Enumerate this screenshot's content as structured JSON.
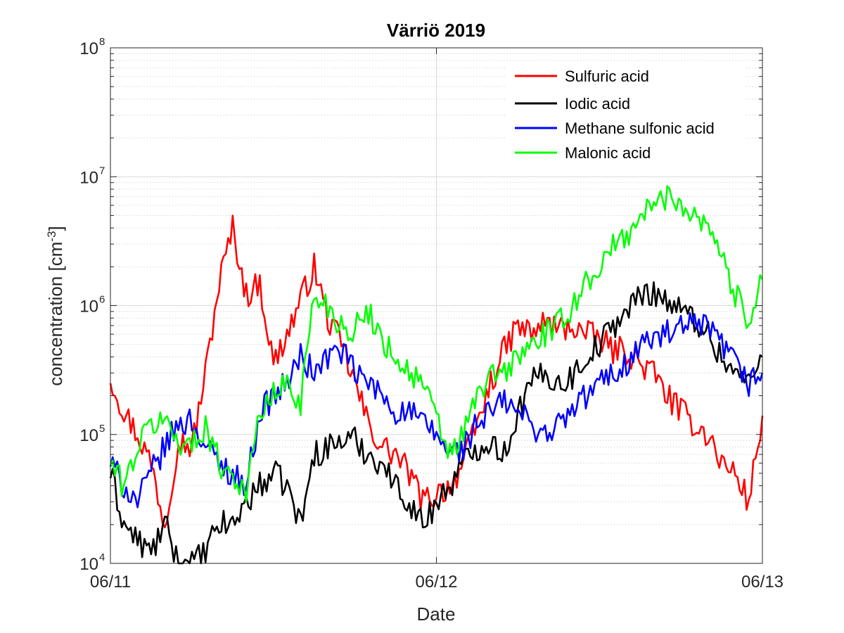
{
  "chart_data": {
    "type": "line",
    "title": "Värriö 2019",
    "xlabel": "Date",
    "ylabel": "concentration [cm",
    "ylabel_exponent": "-3",
    "ylabel_suffix": "]",
    "yscale": "log",
    "ylim": [
      10000,
      100000000
    ],
    "xlim": [
      "06/11 00:00",
      "06/13 00:00"
    ],
    "x_ticks": [
      "06/11",
      "06/12",
      "06/13"
    ],
    "y_ticks": [
      {
        "base": "10",
        "exp": "4"
      },
      {
        "base": "10",
        "exp": "5"
      },
      {
        "base": "10",
        "exp": "6"
      },
      {
        "base": "10",
        "exp": "7"
      },
      {
        "base": "10",
        "exp": "8"
      }
    ],
    "grid": "major and minor on y, major on x",
    "legend_position": "top-right",
    "series": [
      {
        "name": "Sulfuric acid",
        "color": "#ff0000",
        "x_hours": [
          0,
          1,
          2,
          3,
          4,
          5,
          6,
          7,
          8,
          9,
          10,
          11,
          12,
          13,
          14,
          15,
          16,
          17,
          18,
          19,
          20,
          21,
          22,
          23,
          24,
          25,
          26,
          27,
          28,
          29,
          30,
          31,
          32,
          33,
          34,
          35,
          36,
          37,
          38,
          39,
          40,
          41,
          42,
          43,
          44,
          45,
          46,
          47,
          48
        ],
        "values": [
          280000,
          150000,
          100000,
          60000,
          20000,
          90000,
          80000,
          300000,
          1500000,
          4000000,
          1200000,
          1500000,
          350000,
          600000,
          1100000,
          2000000,
          800000,
          500000,
          250000,
          120000,
          80000,
          70000,
          50000,
          30000,
          35000,
          40000,
          60000,
          120000,
          250000,
          450000,
          700000,
          600000,
          750000,
          650000,
          700000,
          600000,
          550000,
          450000,
          450000,
          350000,
          300000,
          200000,
          150000,
          120000,
          100000,
          60000,
          50000,
          30000,
          140000
        ]
      },
      {
        "name": "Iodic acid",
        "color": "#000000",
        "x_hours": [
          0,
          1,
          2,
          3,
          4,
          5,
          6,
          7,
          8,
          9,
          10,
          11,
          12,
          13,
          14,
          15,
          16,
          17,
          18,
          19,
          20,
          21,
          22,
          23,
          24,
          25,
          26,
          27,
          28,
          29,
          30,
          31,
          32,
          33,
          34,
          35,
          36,
          37,
          38,
          39,
          40,
          41,
          42,
          43,
          44,
          45,
          46,
          47,
          48
        ],
        "values": [
          50000,
          20000,
          15000,
          12000,
          20000,
          10000,
          10000,
          12000,
          20000,
          20000,
          30000,
          40000,
          50000,
          40000,
          20000,
          70000,
          80000,
          90000,
          90000,
          70000,
          60000,
          40000,
          30000,
          20000,
          30000,
          40000,
          60000,
          80000,
          90000,
          70000,
          150000,
          250000,
          300000,
          250000,
          280000,
          400000,
          500000,
          700000,
          900000,
          1200000,
          1300000,
          1100000,
          900000,
          800000,
          600000,
          400000,
          300000,
          250000,
          400000
        ]
      },
      {
        "name": "Methane sulfonic acid",
        "color": "#0000ff",
        "x_hours": [
          0,
          1,
          2,
          3,
          4,
          5,
          6,
          7,
          8,
          9,
          10,
          11,
          12,
          13,
          14,
          15,
          16,
          17,
          18,
          19,
          20,
          21,
          22,
          23,
          24,
          25,
          26,
          27,
          28,
          29,
          30,
          31,
          32,
          33,
          34,
          35,
          36,
          37,
          38,
          39,
          40,
          41,
          42,
          43,
          44,
          45,
          46,
          47,
          48
        ],
        "values": [
          60000,
          40000,
          30000,
          50000,
          80000,
          120000,
          130000,
          80000,
          60000,
          50000,
          40000,
          150000,
          200000,
          250000,
          400000,
          300000,
          400000,
          450000,
          300000,
          250000,
          200000,
          150000,
          150000,
          120000,
          100000,
          70000,
          80000,
          120000,
          150000,
          180000,
          150000,
          120000,
          100000,
          120000,
          150000,
          200000,
          250000,
          300000,
          350000,
          500000,
          550000,
          600000,
          650000,
          700000,
          650000,
          500000,
          350000,
          250000,
          300000
        ]
      },
      {
        "name": "Malonic acid",
        "color": "#00ff00",
        "x_hours": [
          0,
          1,
          2,
          3,
          4,
          5,
          6,
          7,
          8,
          9,
          10,
          11,
          12,
          13,
          14,
          15,
          16,
          17,
          18,
          19,
          20,
          21,
          22,
          23,
          24,
          25,
          26,
          27,
          28,
          29,
          30,
          31,
          32,
          33,
          34,
          35,
          36,
          37,
          38,
          39,
          40,
          41,
          42,
          43,
          44,
          45,
          46,
          47,
          48
        ],
        "values": [
          60000,
          40000,
          80000,
          120000,
          130000,
          90000,
          80000,
          120000,
          60000,
          50000,
          35000,
          150000,
          200000,
          250000,
          180000,
          1200000,
          1000000,
          700000,
          650000,
          900000,
          550000,
          400000,
          300000,
          250000,
          130000,
          70000,
          100000,
          200000,
          280000,
          300000,
          400000,
          500000,
          600000,
          700000,
          1000000,
          1500000,
          2000000,
          2800000,
          3500000,
          5000000,
          6000000,
          7000000,
          6500000,
          5000000,
          4500000,
          2500000,
          1200000,
          800000,
          1600000
        ]
      }
    ]
  }
}
